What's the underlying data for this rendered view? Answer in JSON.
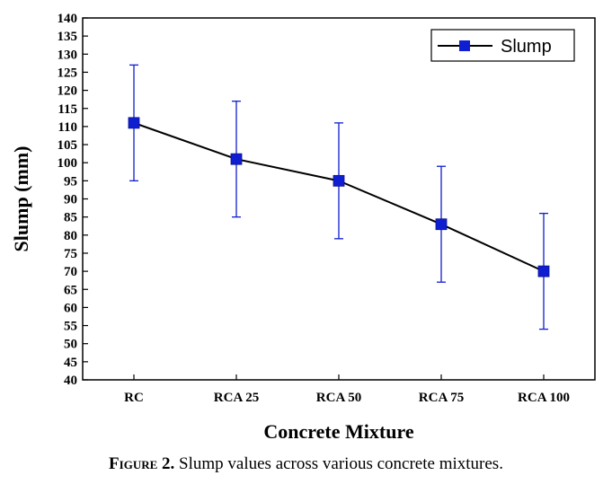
{
  "chart_data": {
    "type": "line",
    "categories": [
      "RC",
      "RCA 25",
      "RCA 50",
      "RCA 75",
      "RCA 100"
    ],
    "series": [
      {
        "name": "Slump",
        "values": [
          111,
          101,
          95,
          83,
          70
        ],
        "error": [
          16,
          16,
          16,
          16,
          16
        ],
        "color": "#0f1ed0",
        "line_color": "#000000",
        "marker": "square"
      }
    ],
    "xlabel": "Concrete Mixture",
    "ylabel": "Slump (mm)",
    "ylim": [
      40,
      140
    ],
    "yticks": [
      40,
      45,
      50,
      55,
      60,
      65,
      70,
      75,
      80,
      85,
      90,
      95,
      100,
      105,
      110,
      115,
      120,
      125,
      130,
      135,
      140
    ],
    "grid": false,
    "legend_position": "top-right"
  },
  "caption": {
    "label": "Figure 2.",
    "text": " Slump values across various concrete mixtures."
  }
}
